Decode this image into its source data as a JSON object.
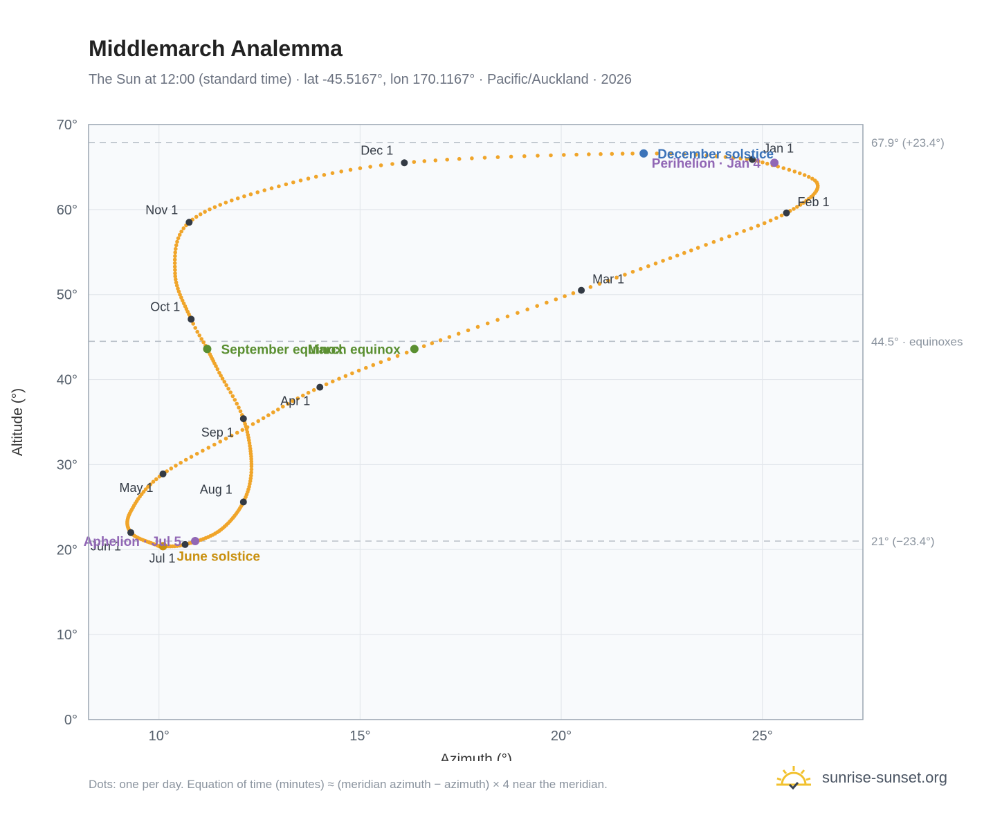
{
  "header": {
    "title": "Middlemarch Analemma",
    "subtitle": "The Sun at 12:00 (standard time) · lat -45.5167°, lon 170.1167° · Pacific/Auckland · 2026"
  },
  "footer": {
    "note": "Dots: one per day. Equation of time (minutes) ≈ (meridian azimuth − azimuth) × 4 near the meridian.",
    "brand": "sunrise-sunset.org",
    "brand_icon": "sun-horizon-icon"
  },
  "chart_data": {
    "type": "scatter",
    "xlabel": "Azimuth (°)",
    "ylabel": "Altitude (°)",
    "xlim": [
      8.25,
      27.5
    ],
    "ylim": [
      0,
      70
    ],
    "xticks": [
      10,
      15,
      20,
      25
    ],
    "yticks": [
      0,
      10,
      20,
      30,
      40,
      50,
      60,
      70
    ],
    "xtick_labels": [
      "10°",
      "15°",
      "20°",
      "25°"
    ],
    "ytick_labels": [
      "0°",
      "10°",
      "20°",
      "30°",
      "40°",
      "50°",
      "60°",
      "70°"
    ],
    "grid": true,
    "colors": {
      "path": "#f0a52a",
      "month": "#333a44",
      "equinox": "#5a8f31",
      "june_solstice": "#c9900f",
      "december_solstice": "#3b73b9",
      "apsis": "#9167b5",
      "ref_line": "#b9c0c8"
    },
    "reference_lines": [
      {
        "y": 67.9,
        "label": "67.9° (+23.4°)"
      },
      {
        "y": 44.5,
        "label": "44.5° · equinoxes"
      },
      {
        "y": 21.0,
        "label": "21° (−23.4°)"
      }
    ],
    "path_anchors": [
      {
        "day": 1,
        "az": 24.75,
        "alt": 65.9
      },
      {
        "day": 16,
        "az": 26.35,
        "alt": 63.2
      },
      {
        "day": 32,
        "az": 25.6,
        "alt": 59.6
      },
      {
        "day": 45,
        "az": 23.4,
        "alt": 55.5
      },
      {
        "day": 60,
        "az": 20.5,
        "alt": 50.5
      },
      {
        "day": 78,
        "az": 16.4,
        "alt": 43.6
      },
      {
        "day": 91,
        "az": 14.0,
        "alt": 39.1
      },
      {
        "day": 105,
        "az": 12.2,
        "alt": 34.4
      },
      {
        "day": 121,
        "az": 10.1,
        "alt": 28.9
      },
      {
        "day": 137,
        "az": 9.3,
        "alt": 24.5
      },
      {
        "day": 152,
        "az": 9.3,
        "alt": 22.0
      },
      {
        "day": 167,
        "az": 9.9,
        "alt": 20.6
      },
      {
        "day": 172,
        "az": 10.1,
        "alt": 20.4
      },
      {
        "day": 182,
        "az": 10.65,
        "alt": 20.6
      },
      {
        "day": 197,
        "az": 11.5,
        "alt": 22.2
      },
      {
        "day": 213,
        "az": 12.1,
        "alt": 25.6
      },
      {
        "day": 226,
        "az": 12.3,
        "alt": 29.8
      },
      {
        "day": 244,
        "az": 12.1,
        "alt": 35.4
      },
      {
        "day": 257,
        "az": 11.5,
        "alt": 40.8
      },
      {
        "day": 266,
        "az": 11.2,
        "alt": 43.6
      },
      {
        "day": 274,
        "az": 10.8,
        "alt": 47.1
      },
      {
        "day": 290,
        "az": 10.4,
        "alt": 52.5
      },
      {
        "day": 305,
        "az": 10.75,
        "alt": 58.5
      },
      {
        "day": 320,
        "az": 12.8,
        "alt": 62.5
      },
      {
        "day": 335,
        "az": 16.1,
        "alt": 65.5
      },
      {
        "day": 355,
        "az": 22.0,
        "alt": 66.6
      },
      {
        "day": 366,
        "az": 24.75,
        "alt": 65.9
      }
    ],
    "month_markers": [
      {
        "label": "Jan 1",
        "az": 24.75,
        "alt": 65.9,
        "pos": "right-top"
      },
      {
        "label": "Feb 1",
        "az": 25.6,
        "alt": 59.6,
        "pos": "right-top"
      },
      {
        "label": "Mar 1",
        "az": 20.5,
        "alt": 50.5,
        "pos": "right-top"
      },
      {
        "label": "Apr 1",
        "az": 14.0,
        "alt": 39.1,
        "pos": "left-bottom"
      },
      {
        "label": "May 1",
        "az": 10.1,
        "alt": 28.9,
        "pos": "left-bottom"
      },
      {
        "label": "Jun 1",
        "az": 9.3,
        "alt": 22.0,
        "pos": "left-bottom"
      },
      {
        "label": "Jul 1",
        "az": 10.65,
        "alt": 20.6,
        "pos": "left-bottom"
      },
      {
        "label": "Aug 1",
        "az": 12.1,
        "alt": 25.6,
        "pos": "left-top"
      },
      {
        "label": "Sep 1",
        "az": 12.1,
        "alt": 35.4,
        "pos": "left-bottom"
      },
      {
        "label": "Oct 1",
        "az": 10.8,
        "alt": 47.1,
        "pos": "left-top"
      },
      {
        "label": "Nov 1",
        "az": 10.75,
        "alt": 58.5,
        "pos": "left-top"
      },
      {
        "label": "Dec 1",
        "az": 16.1,
        "alt": 65.5,
        "pos": "left-top"
      }
    ],
    "events": [
      {
        "label": "March equinox",
        "az": 16.35,
        "alt": 43.6,
        "color": "#5a8f31",
        "pos": "left"
      },
      {
        "label": "September equinox",
        "az": 11.2,
        "alt": 43.6,
        "color": "#5a8f31",
        "pos": "right"
      },
      {
        "label": "June solstice",
        "az": 10.1,
        "alt": 20.4,
        "color": "#c9900f",
        "pos": "right-below"
      },
      {
        "label": "December solstice",
        "az": 22.05,
        "alt": 66.6,
        "color": "#3b73b9",
        "pos": "right"
      },
      {
        "label": "Perihelion · Jan 4",
        "az": 25.3,
        "alt": 65.5,
        "color": "#9167b5",
        "pos": "left"
      },
      {
        "label": "Aphelion · Jul 5",
        "az": 10.9,
        "alt": 21.0,
        "color": "#9167b5",
        "pos": "left"
      }
    ]
  }
}
